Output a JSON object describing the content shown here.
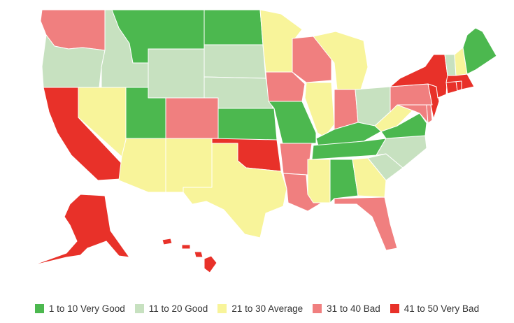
{
  "legend": {
    "items": [
      {
        "key": "very_good",
        "label": "1 to 10 Very Good",
        "color": "#4cb84f"
      },
      {
        "key": "good",
        "label": "11 to 20 Good",
        "color": "#c7e1c0"
      },
      {
        "key": "average",
        "label": "21 to 30 Average",
        "color": "#f8f49a"
      },
      {
        "key": "bad",
        "label": "31 to 40 Bad",
        "color": "#f07f7f"
      },
      {
        "key": "very_bad",
        "label": "41 to 50 Very Bad",
        "color": "#e83129"
      }
    ]
  },
  "states": {
    "WA": "bad",
    "OR": "good",
    "CA": "very_bad",
    "NV": "average",
    "ID": "good",
    "MT": "very_good",
    "WY": "good",
    "UT": "very_good",
    "AZ": "average",
    "CO": "bad",
    "NM": "average",
    "ND": "very_good",
    "SD": "good",
    "NE": "good",
    "KS": "very_good",
    "OK": "very_bad",
    "TX": "average",
    "MN": "average",
    "IA": "bad",
    "MO": "very_good",
    "AR": "bad",
    "LA": "bad",
    "WI": "bad",
    "IL": "average",
    "MI": "average",
    "IN": "bad",
    "OH": "good",
    "KY": "very_good",
    "TN": "very_good",
    "MS": "average",
    "AL": "very_good",
    "GA": "average",
    "FL": "bad",
    "SC": "good",
    "NC": "good",
    "VA": "very_good",
    "WV": "average",
    "PA": "bad",
    "NY": "very_bad",
    "VT": "good",
    "NH": "average",
    "ME": "very_good",
    "MA": "very_bad",
    "CT": "very_bad",
    "RI": "very_bad",
    "NJ": "very_bad",
    "DE": "bad",
    "MD": "bad",
    "AK": "very_bad",
    "HI": "very_bad"
  }
}
